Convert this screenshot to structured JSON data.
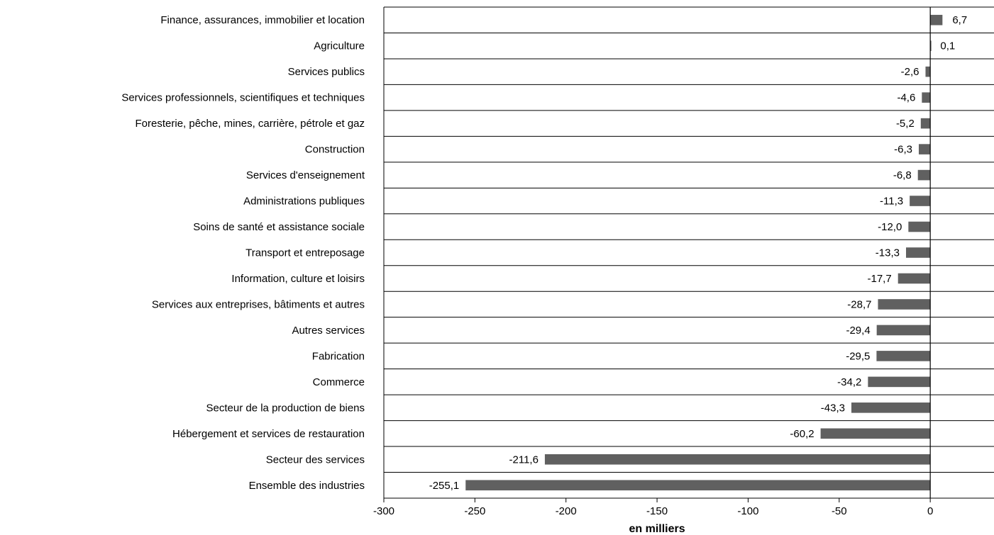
{
  "chart_data": {
    "type": "bar",
    "orientation": "horizontal",
    "title": "",
    "xlabel": "en milliers",
    "ylabel": "",
    "xlim": [
      -300,
      35
    ],
    "xticks": [
      -300,
      -250,
      -200,
      -150,
      -100,
      -50,
      0
    ],
    "xtick_labels": [
      "-300",
      "-250",
      "-200",
      "-150",
      "-100",
      "-50",
      "0"
    ],
    "grid": "horizontal category separators",
    "legend": "none",
    "bar_color": "#606060",
    "categories": [
      "Finance, assurances, immobilier et location",
      "Agriculture",
      "Services publics",
      "Services professionnels, scientifiques et techniques",
      "Foresterie, pêche, mines, carrière, pétrole et gaz",
      "Construction",
      "Services d'enseignement",
      "Administrations publiques",
      "Soins de santé et assistance sociale",
      "Transport et entreposage",
      "Information, culture et loisirs",
      "Services aux entreprises, bâtiments et autres",
      "Autres services",
      "Fabrication",
      "Commerce",
      "Secteur de la production de biens",
      "Hébergement et services de restauration",
      "Secteur des services",
      "Ensemble des industries"
    ],
    "values": [
      6.7,
      0.1,
      -2.6,
      -4.6,
      -5.2,
      -6.3,
      -6.8,
      -11.3,
      -12.0,
      -13.3,
      -17.7,
      -28.7,
      -29.4,
      -29.5,
      -34.2,
      -43.3,
      -60.2,
      -211.6,
      -255.1
    ],
    "value_labels": [
      "6,7",
      "0,1",
      "-2,6",
      "-4,6",
      "-5,2",
      "-6,3",
      "-6,8",
      "-11,3",
      "-12,0",
      "-13,3",
      "-17,7",
      "-28,7",
      "-29,4",
      "-29,5",
      "-34,2",
      "-43,3",
      "-60,2",
      "-211,6",
      "-255,1"
    ]
  }
}
